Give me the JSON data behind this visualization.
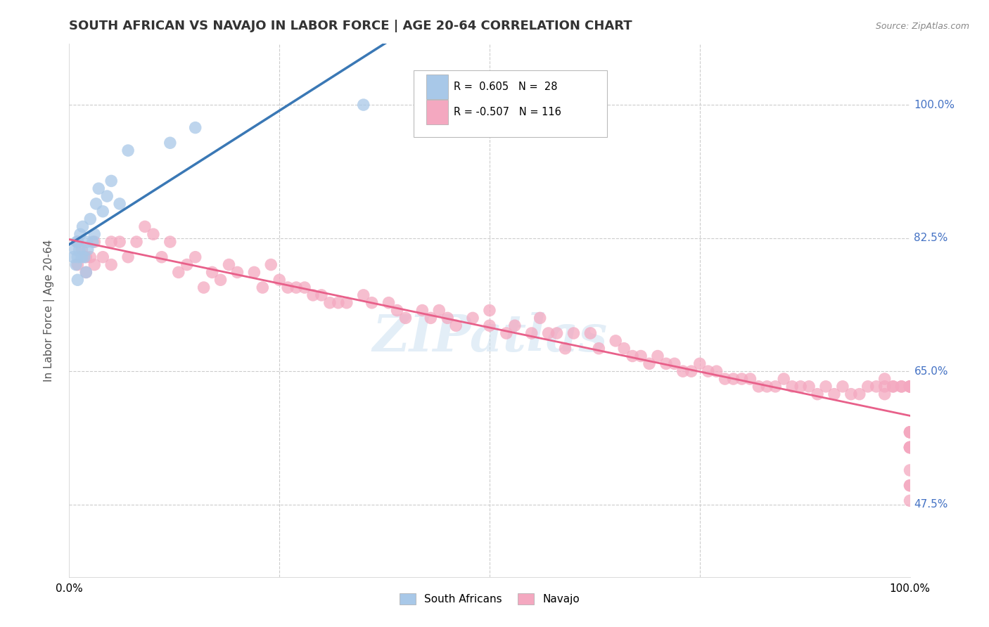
{
  "title": "SOUTH AFRICAN VS NAVAJO IN LABOR FORCE | AGE 20-64 CORRELATION CHART",
  "source": "Source: ZipAtlas.com",
  "ylabel": "In Labor Force | Age 20-64",
  "xlim": [
    0.0,
    1.0
  ],
  "ylim": [
    0.38,
    1.08
  ],
  "xtick_positions": [
    0.0,
    0.25,
    0.5,
    0.75,
    1.0
  ],
  "xticklabels": [
    "0.0%",
    "",
    "",
    "",
    "100.0%"
  ],
  "ytick_positions": [
    0.475,
    0.65,
    0.825,
    1.0
  ],
  "ytick_labels": [
    "47.5%",
    "65.0%",
    "82.5%",
    "100.0%"
  ],
  "watermark": "ZIPatlas",
  "south_african_color": "#a8c8e8",
  "navajo_color": "#f4a8c0",
  "south_african_line_color": "#3a78b5",
  "navajo_line_color": "#e8608a",
  "background_color": "#ffffff",
  "grid_color": "#cccccc",
  "right_label_color": "#4472c4",
  "legend_box_color": "#f0f0f0",
  "sa_label_color": "#4472c4",
  "nav_label_color": "#c05070",
  "sa_x": [
    0.005,
    0.007,
    0.008,
    0.009,
    0.01,
    0.01,
    0.01,
    0.012,
    0.013,
    0.015,
    0.016,
    0.018,
    0.02,
    0.021,
    0.022,
    0.025,
    0.028,
    0.03,
    0.032,
    0.035,
    0.04,
    0.045,
    0.05,
    0.06,
    0.07,
    0.12,
    0.15,
    0.35
  ],
  "sa_y": [
    0.8,
    0.81,
    0.79,
    0.82,
    0.77,
    0.8,
    0.82,
    0.81,
    0.83,
    0.8,
    0.84,
    0.8,
    0.78,
    0.82,
    0.81,
    0.85,
    0.82,
    0.83,
    0.87,
    0.89,
    0.86,
    0.88,
    0.9,
    0.87,
    0.94,
    0.95,
    0.97,
    1.0
  ],
  "nav_x": [
    0.01,
    0.01,
    0.015,
    0.02,
    0.02,
    0.025,
    0.03,
    0.03,
    0.04,
    0.05,
    0.05,
    0.06,
    0.07,
    0.08,
    0.09,
    0.1,
    0.11,
    0.12,
    0.13,
    0.14,
    0.15,
    0.16,
    0.17,
    0.18,
    0.19,
    0.2,
    0.22,
    0.23,
    0.24,
    0.25,
    0.26,
    0.27,
    0.28,
    0.29,
    0.3,
    0.31,
    0.32,
    0.33,
    0.35,
    0.36,
    0.38,
    0.39,
    0.4,
    0.42,
    0.43,
    0.44,
    0.45,
    0.46,
    0.48,
    0.5,
    0.5,
    0.52,
    0.53,
    0.55,
    0.56,
    0.57,
    0.58,
    0.59,
    0.6,
    0.62,
    0.63,
    0.65,
    0.66,
    0.67,
    0.68,
    0.69,
    0.7,
    0.71,
    0.72,
    0.73,
    0.74,
    0.75,
    0.76,
    0.77,
    0.78,
    0.79,
    0.8,
    0.81,
    0.82,
    0.83,
    0.84,
    0.85,
    0.86,
    0.87,
    0.88,
    0.89,
    0.9,
    0.91,
    0.92,
    0.93,
    0.94,
    0.95,
    0.96,
    0.97,
    0.97,
    0.97,
    0.98,
    0.98,
    0.99,
    0.99,
    1.0,
    1.0,
    1.0,
    1.0,
    1.0,
    1.0,
    1.0,
    1.0,
    1.0,
    1.0,
    1.0,
    1.0,
    1.0,
    1.0,
    1.0,
    1.0
  ],
  "nav_y": [
    0.82,
    0.79,
    0.81,
    0.8,
    0.78,
    0.8,
    0.82,
    0.79,
    0.8,
    0.82,
    0.79,
    0.82,
    0.8,
    0.82,
    0.84,
    0.83,
    0.8,
    0.82,
    0.78,
    0.79,
    0.8,
    0.76,
    0.78,
    0.77,
    0.79,
    0.78,
    0.78,
    0.76,
    0.79,
    0.77,
    0.76,
    0.76,
    0.76,
    0.75,
    0.75,
    0.74,
    0.74,
    0.74,
    0.75,
    0.74,
    0.74,
    0.73,
    0.72,
    0.73,
    0.72,
    0.73,
    0.72,
    0.71,
    0.72,
    0.71,
    0.73,
    0.7,
    0.71,
    0.7,
    0.72,
    0.7,
    0.7,
    0.68,
    0.7,
    0.7,
    0.68,
    0.69,
    0.68,
    0.67,
    0.67,
    0.66,
    0.67,
    0.66,
    0.66,
    0.65,
    0.65,
    0.66,
    0.65,
    0.65,
    0.64,
    0.64,
    0.64,
    0.64,
    0.63,
    0.63,
    0.63,
    0.64,
    0.63,
    0.63,
    0.63,
    0.62,
    0.63,
    0.62,
    0.63,
    0.62,
    0.62,
    0.63,
    0.63,
    0.63,
    0.62,
    0.64,
    0.63,
    0.63,
    0.63,
    0.63,
    0.63,
    0.63,
    0.63,
    0.55,
    0.52,
    0.5,
    0.55,
    0.57,
    0.55,
    0.57,
    0.63,
    0.55,
    0.57,
    0.55,
    0.48,
    0.5
  ]
}
